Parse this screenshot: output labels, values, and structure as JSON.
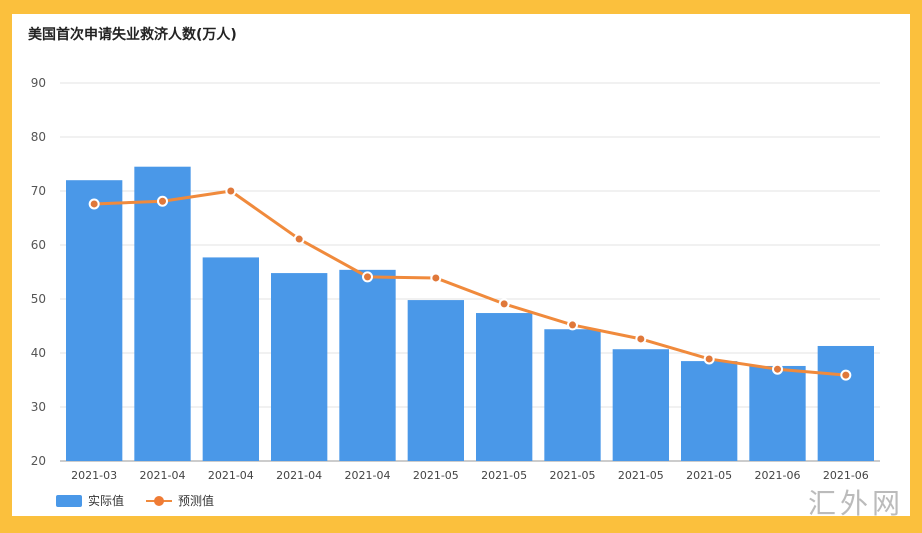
{
  "chart_data": {
    "type": "bar",
    "title": "美国首次申请失业救济人数(万人)",
    "categories": [
      "2021-03",
      "2021-04",
      "2021-04",
      "2021-04",
      "2021-04",
      "2021-05",
      "2021-05",
      "2021-05",
      "2021-05",
      "2021-05",
      "2021-06",
      "2021-06"
    ],
    "series": [
      {
        "name": "实际值",
        "type": "bar",
        "color": "#4a98e8",
        "values": [
          72,
          74.5,
          57.7,
          54.8,
          55.4,
          49.8,
          47.4,
          44.4,
          40.7,
          38.5,
          37.6,
          41.3
        ]
      },
      {
        "name": "预测值",
        "type": "line",
        "color": "#f08a3c",
        "values": [
          67.6,
          68.1,
          70,
          61.1,
          54.1,
          53.9,
          49.1,
          45.2,
          42.6,
          38.9,
          37,
          35.9
        ]
      }
    ],
    "ylim": [
      20,
      90
    ],
    "yticks": [
      20,
      30,
      40,
      50,
      60,
      70,
      80,
      90
    ],
    "grid": true,
    "legend": "bottom-left"
  },
  "watermark": "汇外网"
}
